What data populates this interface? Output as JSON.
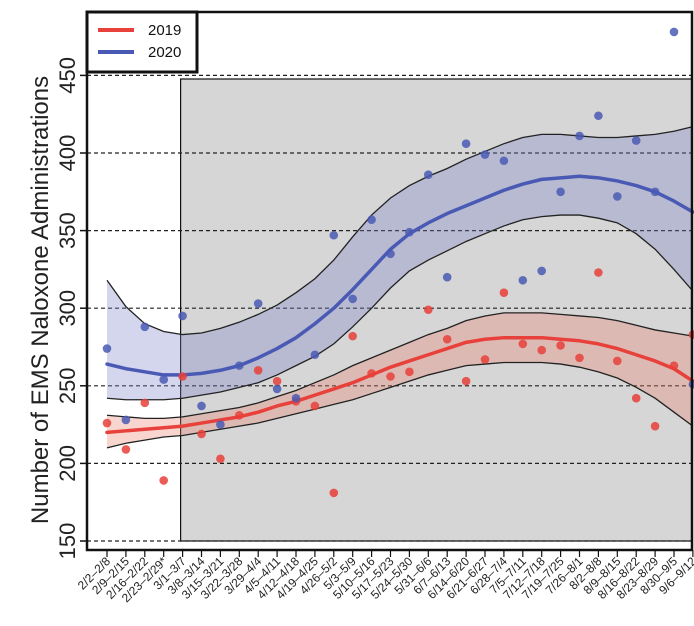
{
  "chart_data": {
    "type": "scatter",
    "ylabel": "Number of EMS Naloxone Administrations",
    "xlabel": "",
    "ylim": [
      150,
      470
    ],
    "yticks": [
      150,
      200,
      250,
      300,
      350,
      400,
      450
    ],
    "grid": "horizontal-dashed",
    "legend_position": "top-left",
    "shaded_region": {
      "from": "3/1–3/7",
      "to": "9/6–9/12"
    },
    "categories": [
      "2/2–2/8",
      "2/9–2/15",
      "2/16–2/22",
      "2/23–2/29*",
      "3/1–3/7",
      "3/8–3/14",
      "3/15–3/21",
      "3/22–3/28",
      "3/29–4/4",
      "4/5–4/11",
      "4/12–4/18",
      "4/19–4/25",
      "4/26–5/2",
      "5/3–5/9",
      "5/10–5/16",
      "5/17–5/23",
      "5/24–5/30",
      "5/31–6/6",
      "6/7–6/13",
      "6/14–6/20",
      "6/21–6/27",
      "6/28–7/4",
      "7/5–7/11",
      "7/12–7/18",
      "7/19–7/25",
      "7/26–8/1",
      "8/2–8/8",
      "8/9–8/15",
      "8/16–8/22",
      "8/23–8/29",
      "8/30–9/5",
      "9/6–9/12"
    ],
    "series": [
      {
        "name": "2019",
        "color": "#e8403a",
        "band_color": "#e8806a",
        "points": [
          226,
          209,
          239,
          189,
          256,
          219,
          203,
          231,
          260,
          253,
          240,
          237,
          181,
          282,
          258,
          256,
          259,
          299,
          280,
          253,
          267,
          310,
          277,
          273,
          276,
          268,
          323,
          266,
          242,
          224,
          263,
          283
        ],
        "fit": [
          220,
          221,
          222,
          223,
          224,
          226,
          228,
          230,
          233,
          237,
          240,
          244,
          248,
          252,
          257,
          262,
          266,
          270,
          274,
          278,
          280,
          281,
          281,
          281,
          280,
          279,
          277,
          274,
          270,
          266,
          261,
          253
        ],
        "ci_lower": [
          210,
          213,
          215,
          217,
          218,
          220,
          222,
          224,
          226,
          229,
          232,
          235,
          238,
          241,
          245,
          249,
          253,
          257,
          260,
          263,
          264,
          265,
          265,
          265,
          264,
          262,
          259,
          255,
          249,
          242,
          233,
          224
        ],
        "ci_upper": [
          231,
          230,
          229,
          229,
          230,
          232,
          234,
          236,
          239,
          243,
          247,
          252,
          257,
          263,
          268,
          273,
          278,
          283,
          287,
          292,
          295,
          297,
          297,
          297,
          296,
          295,
          294,
          292,
          289,
          286,
          284,
          282
        ]
      },
      {
        "name": "2020",
        "color": "#4a5ab4",
        "band_color": "#7680c8",
        "points": [
          274,
          228,
          288,
          254,
          295,
          237,
          225,
          263,
          303,
          248,
          242,
          270,
          347,
          306,
          357,
          335,
          349,
          386,
          320,
          406,
          399,
          395,
          318,
          324,
          375,
          411,
          424,
          372,
          408,
          375,
          478,
          251
        ],
        "fit": [
          264,
          261,
          259,
          257,
          257,
          258,
          260,
          263,
          268,
          274,
          281,
          290,
          300,
          312,
          325,
          338,
          348,
          355,
          361,
          366,
          371,
          376,
          380,
          383,
          384,
          385,
          384,
          382,
          379,
          375,
          369,
          362
        ],
        "ci_lower": [
          242,
          241,
          241,
          241,
          242,
          244,
          246,
          249,
          252,
          257,
          263,
          269,
          277,
          288,
          300,
          313,
          324,
          331,
          337,
          343,
          348,
          353,
          357,
          359,
          360,
          360,
          358,
          355,
          348,
          338,
          325,
          311
        ],
        "ci_upper": [
          318,
          301,
          290,
          285,
          283,
          284,
          287,
          291,
          296,
          302,
          310,
          319,
          331,
          346,
          360,
          371,
          379,
          385,
          390,
          396,
          401,
          406,
          410,
          412,
          412,
          411,
          410,
          410,
          411,
          412,
          414,
          417
        ]
      }
    ]
  }
}
